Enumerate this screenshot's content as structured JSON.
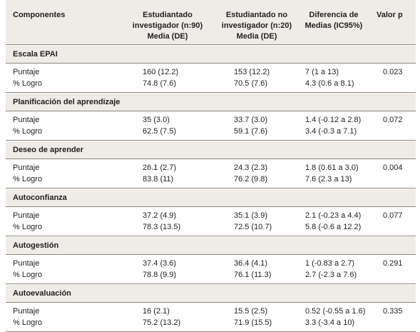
{
  "table": {
    "header": [
      "Componentes",
      "Estudiantado\ninvestigador (n:90)\nMedia (DE)",
      "Estudiantado no\ninvestigador (n:20)\nMedia (DE)",
      "Diferencia de\nMedias (IC95%)",
      "Valor p"
    ],
    "sections": [
      {
        "title": "Escala EPAI",
        "rows": [
          [
            "Puntaje",
            "160 (12.2)",
            "153 (12.2)",
            "7 (1 a 13)",
            "0.023"
          ],
          [
            "% Logro",
            "74.8 (7.6)",
            "70.5 (7.6)",
            "4.3 (0.6 a 8.1)"
          ]
        ]
      },
      {
        "title": "Planificación del aprendizaje",
        "rows": [
          [
            "Puntaje",
            "35 (3.0)",
            "33.7 (3.0)",
            "1.4 (-0.12 a 2.8)",
            "0.072"
          ],
          [
            "% Logro",
            "62.5 (7.5)",
            "59.1 (7.6)",
            "3.4 (-0.3 a 7.1)"
          ]
        ]
      },
      {
        "title": "Deseo de aprender",
        "rows": [
          [
            "Puntaje",
            "26.1 (2.7)",
            "24.3 (2.3)",
            "1.8 (0.61 a 3.0)",
            "0.004"
          ],
          [
            "% Logro",
            "83.8 (11)",
            "76.2 (9.8)",
            "7.6 (2.3 a 13)"
          ]
        ]
      },
      {
        "title": "Autoconfianza",
        "rows": [
          [
            "Puntaje",
            "37.2 (4.9)",
            "35.1 (3.9)",
            "2.1 (-0.23 a 4.4)",
            "0.077"
          ],
          [
            "% Logro",
            "78.3 (13.5)",
            "72.5 (10.7)",
            "5.8 (-0.6 a 12.2)"
          ]
        ]
      },
      {
        "title": "Autogestión",
        "rows": [
          [
            "Puntaje",
            "37.4 (3.6)",
            "36.4 (4.1)",
            "1 (-0.83 a 2.7)",
            "0.291"
          ],
          [
            "% Logro",
            "78.8 (9.9)",
            "76.1 (11.3)",
            "2.7 (-2.3 a 7.6)"
          ]
        ]
      },
      {
        "title": "Autoevaluación",
        "rows": [
          [
            "Puntaje",
            "16 (2.1)",
            "15.5 (2.5)",
            "0.52 (-0.55 a 1.6)",
            "0.335"
          ],
          [
            "% Logro",
            "75.2 (13.2)",
            "71.9 (15.5)",
            "3.3 (-3.4 a 10)"
          ]
        ]
      }
    ]
  }
}
